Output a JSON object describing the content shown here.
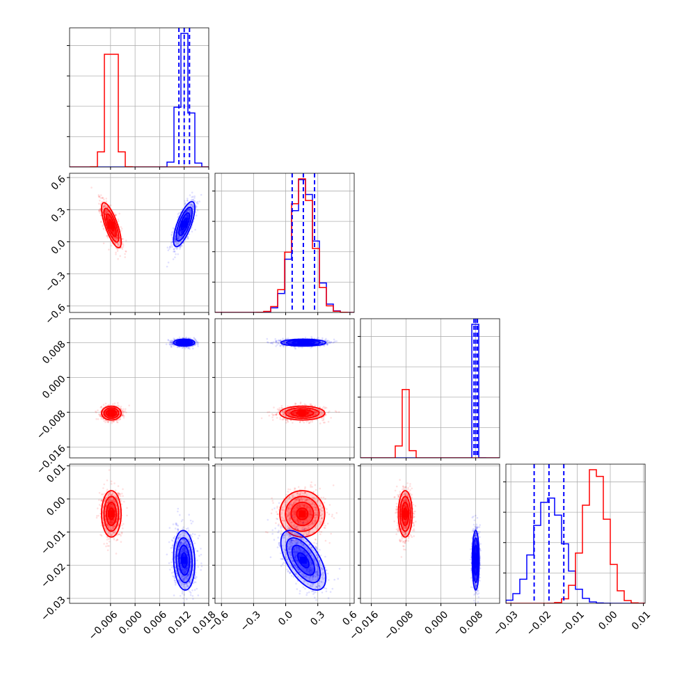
{
  "chart_data": {
    "type": "corner",
    "variables": [
      {
        "range": [
          -0.016,
          0.018
        ],
        "ticks": [
          -0.006,
          0.0,
          0.006,
          0.012,
          0.018
        ],
        "tick_labels": [
          "−0.006",
          "0.000",
          "0.006",
          "0.012",
          "0.018"
        ]
      },
      {
        "range": [
          -0.66,
          0.64
        ],
        "ticks": [
          -0.6,
          -0.3,
          0.0,
          0.3,
          0.6
        ],
        "tick_labels": [
          "−0.6",
          "−0.3",
          "0.0",
          "0.3",
          "0.6"
        ]
      },
      {
        "range": [
          -0.0185,
          0.0135
        ],
        "ticks": [
          -0.016,
          -0.008,
          0.0,
          0.008
        ],
        "tick_labels": [
          "−0.016",
          "−0.008",
          "0.000",
          "0.008"
        ]
      },
      {
        "range": [
          -0.0315,
          0.0105
        ],
        "ticks": [
          -0.03,
          -0.02,
          -0.01,
          0.0,
          0.01
        ],
        "tick_labels": [
          "−0.03",
          "−0.02",
          "−0.01",
          "0.00",
          "0.01"
        ]
      }
    ],
    "series": [
      {
        "color": "#ff0000",
        "mean": [
          -0.0058,
          0.155,
          -0.0082,
          -0.0045
        ],
        "std": [
          0.0012,
          0.105,
          0.0008,
          0.0035
        ],
        "correlations": {
          "0-1": -0.75,
          "0-2": 0.0,
          "0-3": 0.0,
          "1-2": 0.0,
          "1-3": 0.0,
          "2-3": 0.0
        }
      },
      {
        "color": "#0000ff",
        "mean": [
          0.012,
          0.165,
          0.008,
          -0.0185
        ],
        "std": [
          0.0013,
          0.105,
          0.0004,
          0.0045
        ],
        "correlations": {
          "0-1": 0.72,
          "0-2": 0.0,
          "0-3": -0.1,
          "1-2": 0.0,
          "1-3": -0.6,
          "2-3": 0.0
        }
      }
    ],
    "quantile_lines": {
      "color": "#0000ff",
      "series_index": 1,
      "quantiles": [
        0.16,
        0.5,
        0.84
      ]
    },
    "histogram": {
      "style": "step",
      "bins": 20
    },
    "grid": true
  }
}
